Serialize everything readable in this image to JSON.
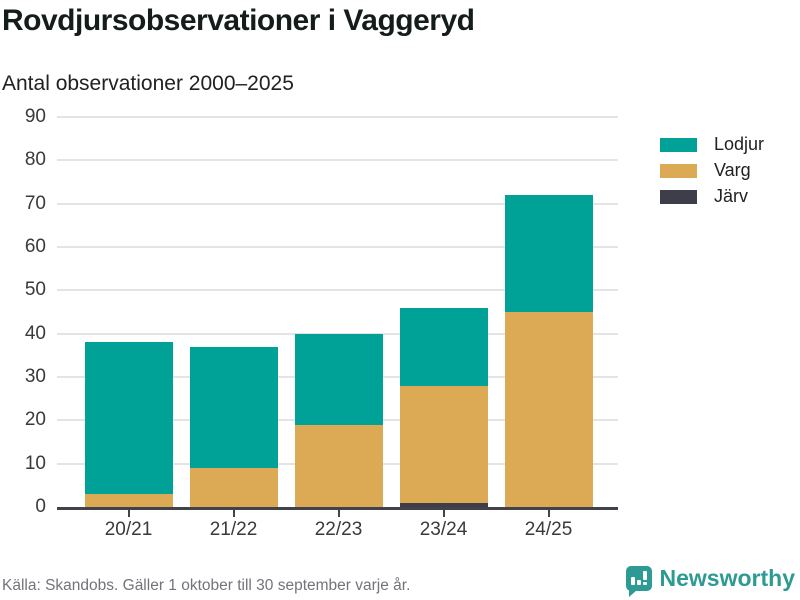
{
  "header": {
    "title": "Rovdjursobservationer i Vaggeryd",
    "subtitle": "Antal observationer 2000–2025"
  },
  "chart_data": {
    "type": "bar",
    "stacked": true,
    "title": "Rovdjursobservationer i Vaggeryd",
    "subtitle": "Antal observationer 2000–2025",
    "xlabel": "",
    "ylabel": "",
    "categories": [
      "20/21",
      "21/22",
      "22/23",
      "23/24",
      "24/25"
    ],
    "series": [
      {
        "key": "lodjur",
        "name": "Lodjur",
        "color": "#00a298",
        "values": [
          35,
          28,
          21,
          18,
          27
        ]
      },
      {
        "key": "varg",
        "name": "Varg",
        "color": "#dcaa55",
        "values": [
          3,
          9,
          19,
          27,
          45
        ]
      },
      {
        "key": "jarv",
        "name": "Järv",
        "color": "#3e3e4a",
        "values": [
          0,
          0,
          0,
          1,
          0
        ]
      }
    ],
    "totals": [
      38,
      37,
      40,
      46,
      72
    ],
    "ylim": [
      0,
      90
    ],
    "yticks": [
      0,
      10,
      20,
      30,
      40,
      50,
      60,
      70,
      80,
      90
    ],
    "grid": true,
    "legend_position": "right"
  },
  "footer": {
    "source": "Källa: Skandobs. Gäller 1 oktober till 30 september varje år.",
    "brand": "Newsworthy",
    "brand_color": "#2d9b93"
  }
}
